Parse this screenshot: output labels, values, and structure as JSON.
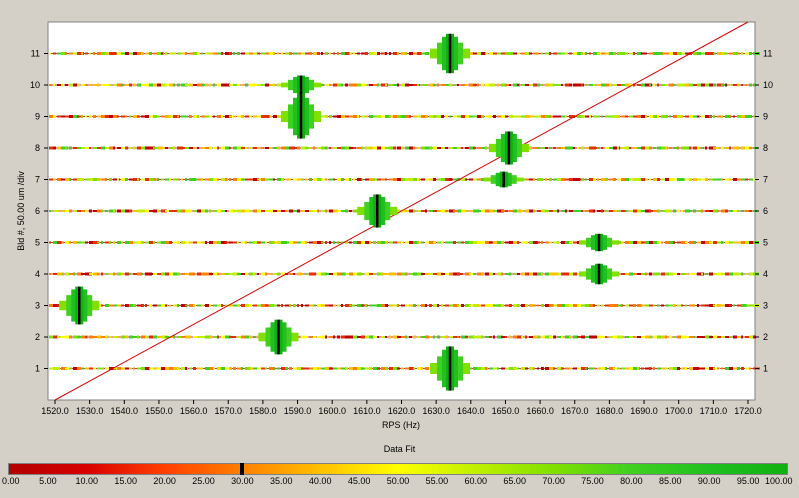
{
  "chart_data": {
    "type": "scatter",
    "xlabel": "RPS (Hz)",
    "ylabel": "Bld #, 50.00  um /div",
    "xlim": [
      1520.0,
      1720.0
    ],
    "ylim": [
      0,
      12
    ],
    "x_ticks": [
      "1520.0",
      "1530.0",
      "1540.0",
      "1550.0",
      "1560.0",
      "1570.0",
      "1580.0",
      "1590.0",
      "1600.0",
      "1610.0",
      "1620.0",
      "1630.0",
      "1640.0",
      "1650.0",
      "1660.0",
      "1670.0",
      "1680.0",
      "1690.0",
      "1700.0",
      "1710.0",
      "1720.0"
    ],
    "y_ticks": [
      "1",
      "2",
      "3",
      "4",
      "5",
      "6",
      "7",
      "8",
      "9",
      "10",
      "11"
    ],
    "reference_line": {
      "from": [
        1520.0,
        0.0
      ],
      "to": [
        1720.0,
        12.0
      ],
      "color": "#e00000"
    },
    "blade_fits": [
      {
        "blade": 1,
        "x": 1634.0,
        "amp": 1.4
      },
      {
        "blade": 2,
        "x": 1584.5,
        "amp": 1.1
      },
      {
        "blade": 3,
        "x": 1527.0,
        "amp": 1.2
      },
      {
        "blade": 4,
        "x": 1677.0,
        "amp": 0.65
      },
      {
        "blade": 5,
        "x": 1677.0,
        "amp": 0.55
      },
      {
        "blade": 6,
        "x": 1613.0,
        "amp": 1.05
      },
      {
        "blade": 7,
        "x": 1649.5,
        "amp": 0.5
      },
      {
        "blade": 8,
        "x": 1651.0,
        "amp": 1.05
      },
      {
        "blade": 9,
        "x": 1591.0,
        "amp": 1.4
      },
      {
        "blade": 10,
        "x": 1591.0,
        "amp": 0.6
      },
      {
        "blade": 11,
        "x": 1634.0,
        "amp": 1.25
      }
    ],
    "colorbar": {
      "title": "Data Fit",
      "ticks": [
        "0.00",
        "5.00",
        "10.00",
        "15.00",
        "20.00",
        "25.00",
        "30.00",
        "35.00",
        "40.00",
        "45.00",
        "50.00",
        "55.00",
        "60.00",
        "65.00",
        "70.00",
        "75.00",
        "80.00",
        "85.00",
        "90.00",
        "95.00",
        "100.00"
      ],
      "marker_value": 30.0,
      "low_color": "#b00000",
      "high_color": "#10b010"
    }
  }
}
